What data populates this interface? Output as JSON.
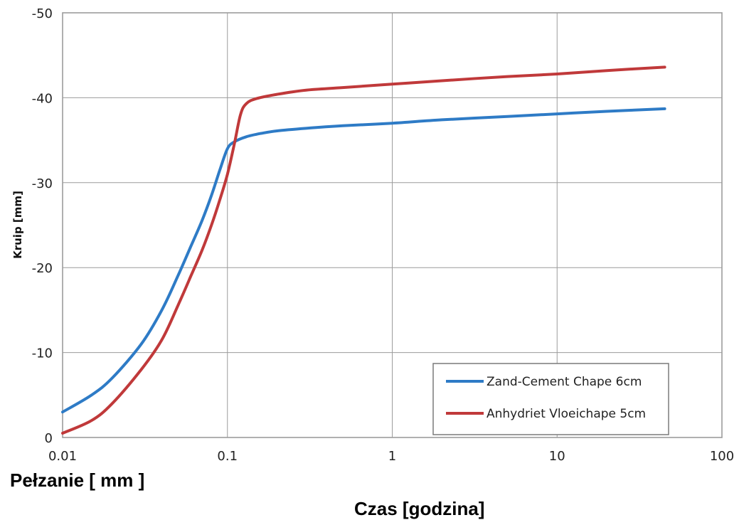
{
  "page_caption": "Pełzanie [ mm ]",
  "x_caption": "Czas [godzina]",
  "chart_data": {
    "type": "line",
    "title": "",
    "xlabel": "Czas [godzina]",
    "ylabel": "Kruip [mm]",
    "xscale": "log",
    "xlim": [
      0.01,
      100
    ],
    "ylim": [
      0,
      -50
    ],
    "y_axis_inverted": true,
    "x_ticks": [
      "0.01",
      "0.1",
      "1",
      "10",
      "100"
    ],
    "y_ticks": [
      "0",
      "-10",
      "-20",
      "-30",
      "-40",
      "-50"
    ],
    "grid": true,
    "legend_position": "bottom-right",
    "series": [
      {
        "name": "Zand-Cement Chape 6cm",
        "color": "#2e7bc6",
        "points": [
          [
            0.01,
            -3.0
          ],
          [
            0.015,
            -5.0
          ],
          [
            0.02,
            -7.0
          ],
          [
            0.03,
            -11.0
          ],
          [
            0.04,
            -15.0
          ],
          [
            0.05,
            -19.0
          ],
          [
            0.06,
            -22.5
          ],
          [
            0.07,
            -25.5
          ],
          [
            0.08,
            -28.5
          ],
          [
            0.09,
            -31.5
          ],
          [
            0.1,
            -34.0
          ],
          [
            0.11,
            -34.8
          ],
          [
            0.13,
            -35.4
          ],
          [
            0.16,
            -35.8
          ],
          [
            0.2,
            -36.1
          ],
          [
            0.3,
            -36.4
          ],
          [
            0.5,
            -36.7
          ],
          [
            1,
            -37.0
          ],
          [
            2,
            -37.4
          ],
          [
            5,
            -37.8
          ],
          [
            10,
            -38.1
          ],
          [
            20,
            -38.4
          ],
          [
            45,
            -38.7
          ]
        ]
      },
      {
        "name": "Anhydriet Vloeichape 5cm",
        "color": "#c0393a",
        "points": [
          [
            0.01,
            -0.5
          ],
          [
            0.015,
            -2.0
          ],
          [
            0.02,
            -4.0
          ],
          [
            0.03,
            -8.0
          ],
          [
            0.04,
            -11.5
          ],
          [
            0.05,
            -15.5
          ],
          [
            0.06,
            -19.0
          ],
          [
            0.07,
            -22.0
          ],
          [
            0.08,
            -25.0
          ],
          [
            0.09,
            -28.0
          ],
          [
            0.1,
            -31.0
          ],
          [
            0.11,
            -34.5
          ],
          [
            0.12,
            -38.0
          ],
          [
            0.13,
            -39.3
          ],
          [
            0.15,
            -39.9
          ],
          [
            0.2,
            -40.4
          ],
          [
            0.3,
            -40.9
          ],
          [
            0.5,
            -41.2
          ],
          [
            1,
            -41.6
          ],
          [
            2,
            -42.0
          ],
          [
            5,
            -42.5
          ],
          [
            10,
            -42.8
          ],
          [
            20,
            -43.2
          ],
          [
            45,
            -43.6
          ]
        ]
      }
    ]
  }
}
